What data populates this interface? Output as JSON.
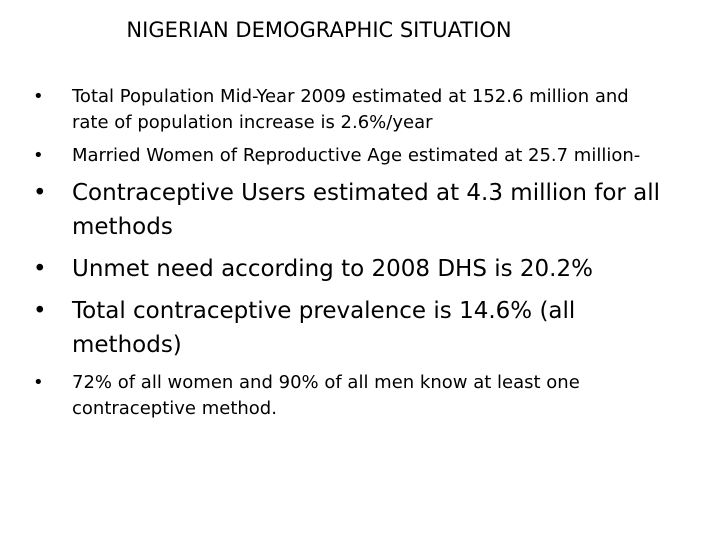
{
  "slide": {
    "title": "NIGERIAN DEMOGRAPHIC SITUATION",
    "bullet_symbol": "•",
    "bullets": [
      "Total Population Mid-Year 2009 estimated at 152.6 million and rate of population increase is 2.6%/year",
      "Married Women of Reproductive Age estimated at 25.7 million-",
      "Contraceptive Users estimated at 4.3 million for all methods",
      "Unmet need according to 2008 DHS is 20.2%",
      "Total contraceptive prevalence is 14.6% (all methods)",
      " 72% of all women and 90% of all men know at least one contraceptive method."
    ]
  }
}
